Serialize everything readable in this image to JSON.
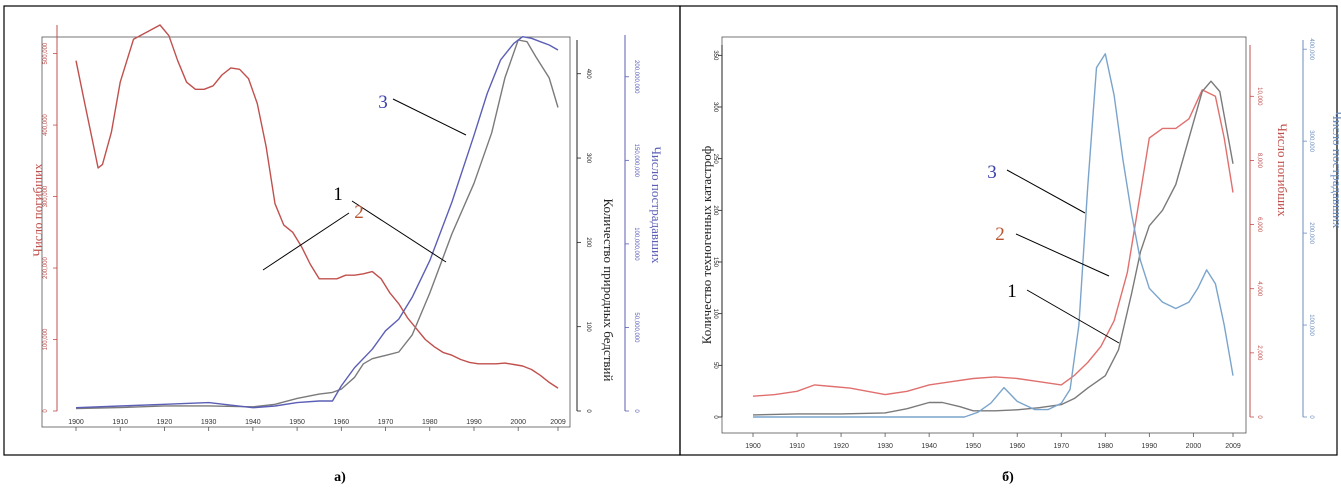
{
  "chart_data": [
    {
      "id": "a",
      "type": "line",
      "caption": "а)",
      "x_ticks": [
        "1900",
        "1910",
        "1920",
        "1930",
        "1940",
        "1950",
        "1960",
        "1970",
        "1980",
        "1990",
        "2000",
        "2009"
      ],
      "axes": {
        "deaths": {
          "title": "Число погибших",
          "ticks": [
            "0",
            "100,000",
            "200,000",
            "300,000",
            "400,000",
            "500,000"
          ],
          "range": [
            0,
            540000
          ],
          "color": "#c0504d"
        },
        "count": {
          "title": "Количество природных бедствий",
          "ticks": [
            "0",
            "100",
            "200",
            "300",
            "400"
          ],
          "range": [
            0,
            440
          ],
          "color": "#222222"
        },
        "affected": {
          "title": "Число пострадавших",
          "ticks": [
            "0",
            "50,000,000",
            "100,000,000",
            "150,000,000",
            "200,000,000"
          ],
          "range": [
            0,
            225000000
          ],
          "color": "#5b5fb5"
        }
      },
      "series": [
        {
          "label": "2",
          "axis": "deaths",
          "color": "#c0504d",
          "x": [
            1900,
            1902,
            1904,
            1905,
            1906,
            1908,
            1910,
            1913,
            1916,
            1919,
            1921,
            1923,
            1925,
            1927,
            1929,
            1931,
            1933,
            1935,
            1937,
            1939,
            1941,
            1943,
            1945,
            1947,
            1949,
            1951,
            1953,
            1955,
            1957,
            1959,
            1961,
            1963,
            1965,
            1967,
            1969,
            1971,
            1973,
            1975,
            1977,
            1979,
            1981,
            1983,
            1985,
            1987,
            1989,
            1991,
            1993,
            1995,
            1997,
            1999,
            2001,
            2003,
            2005,
            2007,
            2009
          ],
          "values": [
            490000,
            430000,
            370000,
            340000,
            345000,
            390000,
            460000,
            520000,
            530000,
            540000,
            525000,
            490000,
            460000,
            450000,
            450000,
            455000,
            470000,
            480000,
            478000,
            465000,
            430000,
            370000,
            290000,
            260000,
            250000,
            230000,
            205000,
            185000,
            185000,
            185000,
            190000,
            190000,
            192000,
            195000,
            185000,
            165000,
            150000,
            130000,
            115000,
            100000,
            90000,
            82000,
            78000,
            72000,
            68000,
            66000,
            66000,
            66000,
            67000,
            65000,
            63000,
            58000,
            50000,
            40000,
            32000
          ]
        },
        {
          "label": "1",
          "axis": "count",
          "color": "#7a7a7a",
          "x": [
            1900,
            1910,
            1920,
            1930,
            1940,
            1945,
            1950,
            1955,
            1958,
            1960,
            1963,
            1965,
            1967,
            1970,
            1973,
            1976,
            1980,
            1985,
            1990,
            1994,
            1997,
            2000,
            2002,
            2004,
            2007,
            2009
          ],
          "values": [
            3,
            4,
            6,
            6,
            5,
            8,
            15,
            20,
            22,
            26,
            40,
            56,
            62,
            66,
            70,
            90,
            140,
            210,
            270,
            330,
            395,
            440,
            438,
            420,
            395,
            360
          ]
        },
        {
          "label": "3",
          "axis": "affected",
          "color": "#5b5fb5",
          "x": [
            1900,
            1910,
            1920,
            1930,
            1940,
            1945,
            1950,
            1955,
            1958,
            1960,
            1963,
            1967,
            1970,
            1973,
            1976,
            1980,
            1985,
            1990,
            1993,
            1996,
            1999,
            2001,
            2003,
            2005,
            2007,
            2009
          ],
          "values": [
            2000000,
            3000000,
            4000000,
            5000000,
            2000000,
            3000000,
            5000000,
            6000000,
            6000000,
            15000000,
            26000000,
            37000000,
            48000000,
            55000000,
            68000000,
            90000000,
            125000000,
            165000000,
            190000000,
            210000000,
            220000000,
            224000000,
            223000000,
            221000000,
            219000000,
            216000000
          ]
        }
      ],
      "callouts": [
        "1",
        "2",
        "3"
      ]
    },
    {
      "id": "b",
      "type": "line",
      "caption": "б)",
      "x_ticks": [
        "1900",
        "1910",
        "1920",
        "1930",
        "1940",
        "1950",
        "1960",
        "1970",
        "1980",
        "1990",
        "2000",
        "2009"
      ],
      "axes": {
        "count": {
          "title": "Количество техногенных катастроф",
          "ticks": [
            "0",
            "50",
            "100",
            "150",
            "200",
            "250",
            "300",
            "350"
          ],
          "range": [
            0,
            360
          ],
          "color": "#222222"
        },
        "deaths": {
          "title": "Число погибших",
          "ticks": [
            "0",
            "2,000",
            "4,000",
            "6,000",
            "8,000",
            "10,000"
          ],
          "range": [
            0,
            11600
          ],
          "color": "#c0504d"
        },
        "affected": {
          "title": "Число пострадавших",
          "ticks": [
            "0",
            "100,000",
            "200,000",
            "300,000",
            "400,000"
          ],
          "range": [
            0,
            410000
          ],
          "color": "#6c8ebf"
        }
      },
      "series": [
        {
          "label": "2",
          "axis": "deaths",
          "color": "#e0706e",
          "x": [
            1900,
            1905,
            1910,
            1914,
            1918,
            1922,
            1926,
            1930,
            1935,
            1940,
            1945,
            1950,
            1955,
            1960,
            1965,
            1970,
            1973,
            1976,
            1979,
            1982,
            1985,
            1988,
            1990,
            1993,
            1996,
            1999,
            2002,
            2005,
            2007,
            2009
          ],
          "values": [
            650,
            700,
            800,
            1000,
            950,
            900,
            800,
            700,
            800,
            1000,
            1100,
            1200,
            1250,
            1200,
            1100,
            1000,
            1300,
            1700,
            2200,
            3000,
            4500,
            7000,
            8700,
            9000,
            9000,
            9300,
            10200,
            10000,
            8700,
            7000
          ]
        },
        {
          "label": "1",
          "axis": "count",
          "color": "#7a7a7a",
          "x": [
            1900,
            1910,
            1920,
            1930,
            1935,
            1940,
            1943,
            1947,
            1950,
            1955,
            1960,
            1965,
            1970,
            1973,
            1976,
            1980,
            1983,
            1986,
            1988,
            1990,
            1993,
            1996,
            1999,
            2002,
            2004,
            2006,
            2009
          ],
          "values": [
            2,
            3,
            3,
            4,
            8,
            14,
            14,
            10,
            6,
            6,
            7,
            9,
            12,
            18,
            28,
            40,
            65,
            120,
            160,
            185,
            200,
            225,
            270,
            315,
            325,
            315,
            245
          ]
        },
        {
          "label": "3",
          "axis": "affected",
          "color": "#7aa4cc",
          "x": [
            1900,
            1920,
            1930,
            1940,
            1948,
            1951,
            1954,
            1957,
            1960,
            1964,
            1967,
            1970,
            1972,
            1974,
            1976,
            1978,
            1980,
            1982,
            1984,
            1986,
            1988,
            1990,
            1993,
            1996,
            1999,
            2001,
            2003,
            2005,
            2007,
            2009
          ],
          "values": [
            0,
            0,
            0,
            0,
            0,
            5000,
            15000,
            32000,
            17000,
            8000,
            8000,
            15000,
            30000,
            100000,
            250000,
            380000,
            395000,
            350000,
            280000,
            220000,
            170000,
            140000,
            125000,
            118000,
            125000,
            140000,
            160000,
            145000,
            100000,
            45000
          ]
        }
      ],
      "callouts": [
        "1",
        "2",
        "3"
      ]
    }
  ]
}
